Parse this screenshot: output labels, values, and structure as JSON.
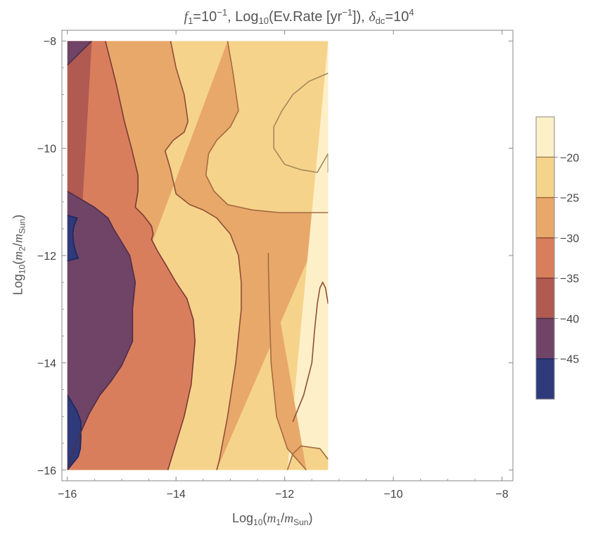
{
  "chart_data": {
    "type": "heatmap",
    "title": {
      "f_symbol": "f",
      "f_index": "1",
      "f_eq": "=10",
      "f_exp": "−1",
      "mid": ", Log",
      "log_base": "10",
      "quantity_open": "(Ev.Rate [yr",
      "rate_exp": "−1",
      "quantity_close": "]), ",
      "delta_symbol": "δ",
      "delta_index": "dc",
      "delta_eq": "=10",
      "delta_exp": "4"
    },
    "xlabel": {
      "pre": "Log",
      "base": "10",
      "open": "(",
      "num": "m",
      "num_index": "1",
      "slash": "/",
      "den": "m",
      "den_index": "Sun",
      "close": ")"
    },
    "ylabel": {
      "pre": "Log",
      "base": "10",
      "open": "(",
      "num": "m",
      "num_index": "2",
      "slash": "/",
      "den": "m",
      "den_index": "Sun",
      "close": ")"
    },
    "xlim": [
      -16.1,
      -7.8
    ],
    "ylim": [
      -16.2,
      -7.8
    ],
    "data_extent": {
      "x": [
        -16,
        -11.2
      ],
      "y": [
        -16,
        -8
      ]
    },
    "x_ticks": [
      -16,
      -14,
      -12,
      -10,
      -8
    ],
    "y_ticks": [
      -8,
      -10,
      -12,
      -14,
      -16
    ],
    "x_tick_labels": [
      "−16",
      "−14",
      "−12",
      "−10",
      "−8"
    ],
    "y_tick_labels": [
      "−8",
      "−10",
      "−12",
      "−14",
      "−16"
    ],
    "contour_levels": [
      -45,
      -40,
      -35,
      -30,
      -25,
      -20
    ],
    "legend_tick_labels": [
      "−45",
      "−40",
      "−35",
      "−30",
      "−25",
      "−20"
    ],
    "legend_placement": "right",
    "colors": [
      "#2e3a7a",
      "#6f4466",
      "#b05a52",
      "#d97e5d",
      "#e8a86a",
      "#f6d38b",
      "#fdf0c8"
    ],
    "line_colors": [
      "#1e2660",
      "#4e2e48",
      "#7a3a34",
      "#8e4e36",
      "#a46a40",
      "#a4895a",
      "#9e8a6a"
    ],
    "grid": false,
    "contours": [
      {
        "level": -45,
        "x": [
          -16,
          -15.82,
          -15.88,
          -15.9,
          -15.88,
          -15.84,
          -15.8,
          -16
        ],
        "y": [
          -11.25,
          -11.3,
          -11.45,
          -11.6,
          -11.8,
          -11.95,
          -12.05,
          -12.1
        ]
      },
      {
        "level": -45,
        "x": [
          -16,
          -15.94,
          -15.82,
          -15.75,
          -15.75,
          -15.76,
          -15.8,
          -16
        ],
        "y": [
          -14.6,
          -14.7,
          -14.9,
          -15.1,
          -15.4,
          -15.6,
          -15.75,
          -16
        ]
      },
      {
        "level": -40,
        "x": [
          -16,
          -15.75,
          -15.5,
          -15.25,
          -15.15,
          -15.0,
          -14.85,
          -14.75,
          -14.8,
          -14.8,
          -15.0,
          -15.2,
          -15.4,
          -15.6,
          -15.82,
          -16
        ],
        "y": [
          -10.8,
          -10.95,
          -11.1,
          -11.3,
          -11.5,
          -11.75,
          -12.0,
          -12.5,
          -13.0,
          -13.6,
          -14.05,
          -14.35,
          -14.6,
          -14.95,
          -15.45,
          -16
        ]
      },
      {
        "level": -40,
        "x": [
          -16,
          -15.85,
          -15.7,
          -15.55
        ],
        "y": [
          -8.45,
          -8.3,
          -8.15,
          -8.0
        ]
      },
      {
        "level": -35,
        "x": [
          -15.3,
          -15.1,
          -14.95,
          -14.82,
          -14.7,
          -14.7,
          -14.75,
          -14.6,
          -14.45,
          -14.42,
          -14.45,
          -14.35,
          -14.2,
          -14.0,
          -13.8,
          -13.68,
          -13.65,
          -13.72,
          -13.85,
          -14.0,
          -14.15
        ],
        "y": [
          -8,
          -8.8,
          -9.5,
          -10.0,
          -10.5,
          -10.8,
          -11.1,
          -11.25,
          -11.45,
          -11.6,
          -11.7,
          -11.9,
          -12.15,
          -12.5,
          -12.8,
          -13.2,
          -13.6,
          -14.4,
          -15.0,
          -15.5,
          -16
        ]
      },
      {
        "level": -30,
        "x": [
          -14.1,
          -14.0,
          -13.85,
          -13.78,
          -13.85,
          -14.05,
          -14.2,
          -14.1,
          -14.0,
          -13.75,
          -13.5,
          -13.25,
          -13.0,
          -12.85,
          -12.8,
          -12.8,
          -12.9,
          -13.05,
          -13.2,
          -13.25
        ],
        "y": [
          -8,
          -8.5,
          -9.0,
          -9.5,
          -9.7,
          -9.85,
          -10.05,
          -10.4,
          -10.85,
          -11.05,
          -11.15,
          -11.3,
          -11.6,
          -12.0,
          -12.5,
          -13.0,
          -14.0,
          -15.0,
          -15.8,
          -16
        ]
      },
      {
        "level": -25,
        "x": [
          -13.05,
          -12.95,
          -12.85,
          -13.0,
          -13.25,
          -13.4,
          -13.45,
          -13.3,
          -13.05,
          -12.6,
          -12.1,
          -11.7,
          -11.2
        ],
        "y": [
          -8,
          -8.6,
          -9.3,
          -9.6,
          -9.85,
          -10.1,
          -10.5,
          -10.8,
          -11.05,
          -11.15,
          -11.2,
          -11.2,
          -11.2
        ]
      },
      {
        "level": -25,
        "x": [
          -11.6,
          -11.95,
          -12.15,
          -12.25,
          -12.28,
          -12.3,
          -12.3
        ],
        "y": [
          -16,
          -15.6,
          -15.0,
          -14.0,
          -13.0,
          -12.2,
          -11.95
        ]
      },
      {
        "level": -25,
        "x": [
          -11.2,
          -11.35,
          -11.7,
          -11.85,
          -11.95
        ],
        "y": [
          -15.8,
          -15.6,
          -15.55,
          -15.7,
          -16
        ]
      },
      {
        "level": -20,
        "x": [
          -11.2,
          -11.4,
          -11.7,
          -12.0,
          -12.2,
          -12.2,
          -12.05,
          -11.85,
          -11.55,
          -11.2
        ],
        "y": [
          -10.1,
          -10.45,
          -10.4,
          -10.3,
          -10.0,
          -9.6,
          -9.3,
          -9.0,
          -8.75,
          -8.6
        ]
      },
      {
        "level": -30,
        "x": [
          -11.2,
          -11.25,
          -11.3,
          -11.35,
          -11.4,
          -11.45,
          -11.5,
          -11.65,
          -11.85
        ],
        "y": [
          -12.9,
          -12.6,
          -12.5,
          -12.6,
          -12.9,
          -13.4,
          -14.0,
          -14.6,
          -15.1
        ]
      }
    ]
  }
}
